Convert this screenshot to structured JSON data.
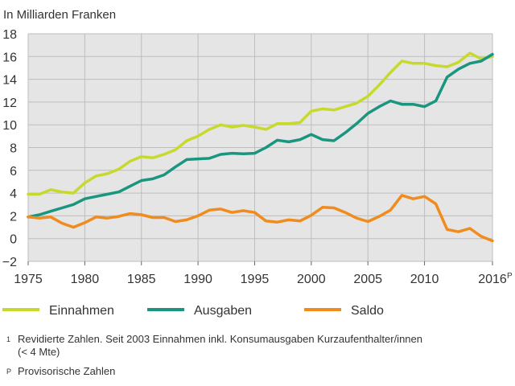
{
  "chart_data": {
    "type": "line",
    "ylabel": "In Milliarden Franken",
    "ylim": [
      -2,
      18
    ],
    "yticks": [
      -2,
      0,
      2,
      4,
      6,
      8,
      10,
      12,
      14,
      16,
      18
    ],
    "xlim": [
      1975,
      2016
    ],
    "xticks": [
      1975,
      1980,
      1985,
      1990,
      1995,
      2000,
      2005,
      2010
    ],
    "last_tick_label": "2016",
    "last_tick_sup": "P",
    "grid": true,
    "legend_position": "bottom",
    "x": [
      1975,
      1976,
      1977,
      1978,
      1979,
      1980,
      1981,
      1982,
      1983,
      1984,
      1985,
      1986,
      1987,
      1988,
      1989,
      1990,
      1991,
      1992,
      1993,
      1994,
      1995,
      1996,
      1997,
      1998,
      1999,
      2000,
      2001,
      2002,
      2003,
      2004,
      2005,
      2006,
      2007,
      2008,
      2009,
      2010,
      2011,
      2012,
      2013,
      2014,
      2015,
      2016
    ],
    "series": [
      {
        "name": "Einnahmen",
        "color": "#c8d92e",
        "values": [
          3.9,
          3.9,
          4.3,
          4.1,
          4.0,
          4.9,
          5.5,
          5.7,
          6.1,
          6.8,
          7.2,
          7.1,
          7.4,
          7.8,
          8.6,
          9.0,
          9.6,
          10.0,
          9.8,
          9.95,
          9.8,
          9.6,
          10.1,
          10.1,
          10.2,
          11.2,
          11.4,
          11.3,
          11.6,
          11.9,
          12.5,
          13.5,
          14.6,
          15.6,
          15.4,
          15.4,
          15.2,
          15.1,
          15.5,
          16.3,
          15.8,
          16.0
        ]
      },
      {
        "name": "Ausgaben",
        "color": "#1a9580",
        "values": [
          1.9,
          2.1,
          2.4,
          2.7,
          3.0,
          3.5,
          3.7,
          3.9,
          4.1,
          4.6,
          5.1,
          5.25,
          5.6,
          6.3,
          6.95,
          7.0,
          7.05,
          7.4,
          7.5,
          7.45,
          7.5,
          8.0,
          8.65,
          8.5,
          8.7,
          9.15,
          8.7,
          8.6,
          9.3,
          10.1,
          11.0,
          11.6,
          12.1,
          11.8,
          11.8,
          11.6,
          12.1,
          14.2,
          14.9,
          15.4,
          15.6,
          16.2
        ]
      },
      {
        "name": "Saldo",
        "color": "#f08c1e",
        "values": [
          1.9,
          1.8,
          1.9,
          1.35,
          1.0,
          1.4,
          1.9,
          1.8,
          1.95,
          2.2,
          2.1,
          1.85,
          1.85,
          1.5,
          1.65,
          2.0,
          2.5,
          2.6,
          2.3,
          2.45,
          2.3,
          1.55,
          1.45,
          1.65,
          1.55,
          2.05,
          2.75,
          2.7,
          2.3,
          1.8,
          1.5,
          1.95,
          2.5,
          3.8,
          3.5,
          3.7,
          3.05,
          0.8,
          0.6,
          0.9,
          0.2,
          -0.2
        ]
      }
    ]
  },
  "footnotes": [
    {
      "mark": "1",
      "text": "Revidierte Zahlen. Seit 2003 Einnahmen inkl. Konsumausgaben Kurzaufenthalter/innen",
      "text2": "(< 4 Mte)"
    },
    {
      "mark": "P",
      "text": "Provisorische Zahlen"
    }
  ]
}
